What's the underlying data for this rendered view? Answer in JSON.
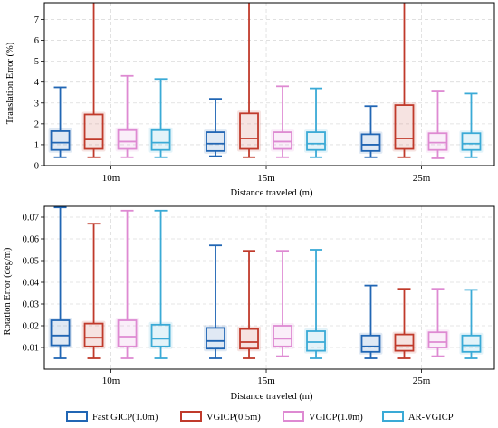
{
  "legend": [
    {
      "label": "Fast GICP(1.0m)",
      "color": "#2166b4"
    },
    {
      "label": "VGICP(0.5m)",
      "color": "#c03a2b"
    },
    {
      "label": "VGICP(1.0m)",
      "color": "#de8ad2"
    },
    {
      "label": "AR-VGICP",
      "color": "#3aaad6"
    }
  ],
  "chart_data": [
    {
      "type": "box",
      "categories": [
        "10m",
        "15m",
        "25m"
      ],
      "xlabel": "Distance traveled (m)",
      "ylabel": "Translation Error (%)",
      "ylim": [
        0,
        7.8
      ],
      "yticks": [
        "0",
        "1",
        "2",
        "3",
        "4",
        "5",
        "6",
        "7"
      ],
      "grid": true,
      "series": [
        {
          "name": "Fast GICP(1.0m)",
          "color": "#2166b4",
          "boxes": [
            [
              0.4,
              0.75,
              1.1,
              1.65,
              3.75
            ],
            [
              0.45,
              0.7,
              1.05,
              1.6,
              3.2
            ],
            [
              0.4,
              0.7,
              1.0,
              1.5,
              2.85
            ]
          ]
        },
        {
          "name": "VGICP(0.5m)",
          "color": "#c03a2b",
          "boxes": [
            [
              0.4,
              0.8,
              1.25,
              2.45,
              7.8
            ],
            [
              0.4,
              0.8,
              1.3,
              2.5,
              7.8
            ],
            [
              0.4,
              0.8,
              1.3,
              2.9,
              7.8
            ]
          ]
        },
        {
          "name": "VGICP(1.0m)",
          "color": "#de8ad2",
          "boxes": [
            [
              0.4,
              0.8,
              1.15,
              1.7,
              4.3
            ],
            [
              0.4,
              0.8,
              1.15,
              1.6,
              3.8
            ],
            [
              0.35,
              0.75,
              1.1,
              1.55,
              3.55
            ]
          ]
        },
        {
          "name": "AR-VGICP",
          "color": "#3aaad6",
          "boxes": [
            [
              0.4,
              0.75,
              1.1,
              1.7,
              4.15
            ],
            [
              0.4,
              0.75,
              1.05,
              1.6,
              3.7
            ],
            [
              0.4,
              0.75,
              1.05,
              1.55,
              3.45
            ]
          ]
        }
      ]
    },
    {
      "type": "box",
      "categories": [
        "10m",
        "15m",
        "25m"
      ],
      "xlabel": "Distance traveled (m)",
      "ylabel": "Rotation Error (deg/m)",
      "ylim": [
        0,
        0.075
      ],
      "yticks": [
        "0.01",
        "0.02",
        "0.03",
        "0.04",
        "0.05",
        "0.06",
        "0.07"
      ],
      "grid": true,
      "series": [
        {
          "name": "Fast GICP(1.0m)",
          "color": "#2166b4",
          "boxes": [
            [
              0.005,
              0.011,
              0.0155,
              0.0225,
              0.0745
            ],
            [
              0.005,
              0.0095,
              0.013,
              0.019,
              0.057
            ],
            [
              0.005,
              0.008,
              0.0105,
              0.0155,
              0.0385
            ]
          ]
        },
        {
          "name": "VGICP(0.5m)",
          "color": "#c03a2b",
          "boxes": [
            [
              0.005,
              0.0105,
              0.0145,
              0.021,
              0.067
            ],
            [
              0.005,
              0.0095,
              0.0125,
              0.0185,
              0.0545
            ],
            [
              0.005,
              0.0085,
              0.011,
              0.016,
              0.037
            ]
          ]
        },
        {
          "name": "VGICP(1.0m)",
          "color": "#de8ad2",
          "boxes": [
            [
              0.005,
              0.0105,
              0.015,
              0.0225,
              0.073
            ],
            [
              0.006,
              0.0105,
              0.014,
              0.02,
              0.0545
            ],
            [
              0.006,
              0.01,
              0.0125,
              0.017,
              0.037
            ]
          ]
        },
        {
          "name": "AR-VGICP",
          "color": "#3aaad6",
          "boxes": [
            [
              0.005,
              0.0105,
              0.014,
              0.0205,
              0.073
            ],
            [
              0.005,
              0.0085,
              0.0125,
              0.0175,
              0.055
            ],
            [
              0.005,
              0.008,
              0.011,
              0.0155,
              0.0365
            ]
          ]
        }
      ]
    }
  ]
}
